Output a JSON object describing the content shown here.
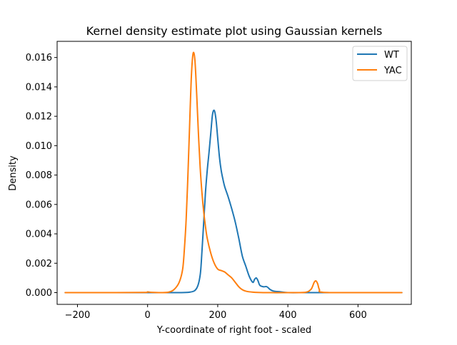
{
  "chart_data": {
    "type": "line",
    "title": "Kernel density estimate plot using Gaussian kernels",
    "xlabel": "Y-coordinate of right foot - scaled",
    "ylabel": "Density",
    "xlim": [
      -258,
      752
    ],
    "ylim": [
      -0.0008,
      0.0171
    ],
    "x_ticks": [
      -200,
      0,
      200,
      400,
      600
    ],
    "x_tick_labels": [
      "−200",
      "0",
      "200",
      "400",
      "600"
    ],
    "y_ticks": [
      0.0,
      0.002,
      0.004,
      0.006,
      0.008,
      0.01,
      0.012,
      0.014,
      0.016
    ],
    "y_tick_labels": [
      "0.000",
      "0.002",
      "0.004",
      "0.006",
      "0.008",
      "0.010",
      "0.012",
      "0.014",
      "0.016"
    ],
    "grid": false,
    "legend_position": "top-right",
    "series": [
      {
        "name": "WT",
        "color": "#1f77b4",
        "x": [
          -235,
          -100,
          0,
          60,
          120,
          140,
          150,
          155,
          160,
          165,
          170,
          175,
          180,
          185,
          190,
          195,
          200,
          205,
          210,
          215,
          220,
          230,
          240,
          250,
          260,
          270,
          280,
          290,
          300,
          305,
          310,
          315,
          320,
          330,
          340,
          350,
          360,
          380,
          400,
          450,
          500,
          600,
          725
        ],
        "y": [
          0.0,
          0.0,
          0.0,
          0.0,
          3e-05,
          0.0003,
          0.0012,
          0.0028,
          0.0048,
          0.0068,
          0.0083,
          0.0095,
          0.0108,
          0.0121,
          0.0124,
          0.0118,
          0.0105,
          0.0092,
          0.0083,
          0.0077,
          0.0072,
          0.0065,
          0.0057,
          0.0048,
          0.0037,
          0.0025,
          0.0018,
          0.0011,
          0.0007,
          0.0009,
          0.001,
          0.0008,
          0.0005,
          0.0004,
          0.0004,
          0.0002,
          0.0001,
          5e-05,
          0.0,
          0.0,
          0.0,
          0.0,
          0.0
        ]
      },
      {
        "name": "YAC",
        "color": "#ff7f0e",
        "x": [
          -235,
          -100,
          -10,
          0,
          10,
          40,
          60,
          75,
          90,
          100,
          105,
          110,
          115,
          120,
          125,
          130,
          135,
          140,
          145,
          150,
          155,
          160,
          165,
          170,
          180,
          190,
          200,
          210,
          220,
          230,
          240,
          250,
          260,
          270,
          280,
          300,
          330,
          400,
          450,
          465,
          470,
          475,
          480,
          485,
          490,
          500,
          600,
          725
        ],
        "y": [
          0.0,
          0.0,
          1e-05,
          5e-05,
          2e-05,
          0.0,
          3e-05,
          0.0002,
          0.0007,
          0.0016,
          0.003,
          0.005,
          0.008,
          0.0115,
          0.0148,
          0.0163,
          0.0158,
          0.0135,
          0.0108,
          0.0085,
          0.0068,
          0.0055,
          0.0045,
          0.0037,
          0.0027,
          0.002,
          0.0016,
          0.0015,
          0.0014,
          0.0012,
          0.001,
          0.0007,
          0.0004,
          0.0002,
          0.0001,
          3e-05,
          0.0,
          0.0,
          2e-05,
          0.0002,
          0.0004,
          0.0007,
          0.0008,
          0.0006,
          0.0002,
          2e-05,
          0.0,
          0.0
        ]
      }
    ]
  }
}
